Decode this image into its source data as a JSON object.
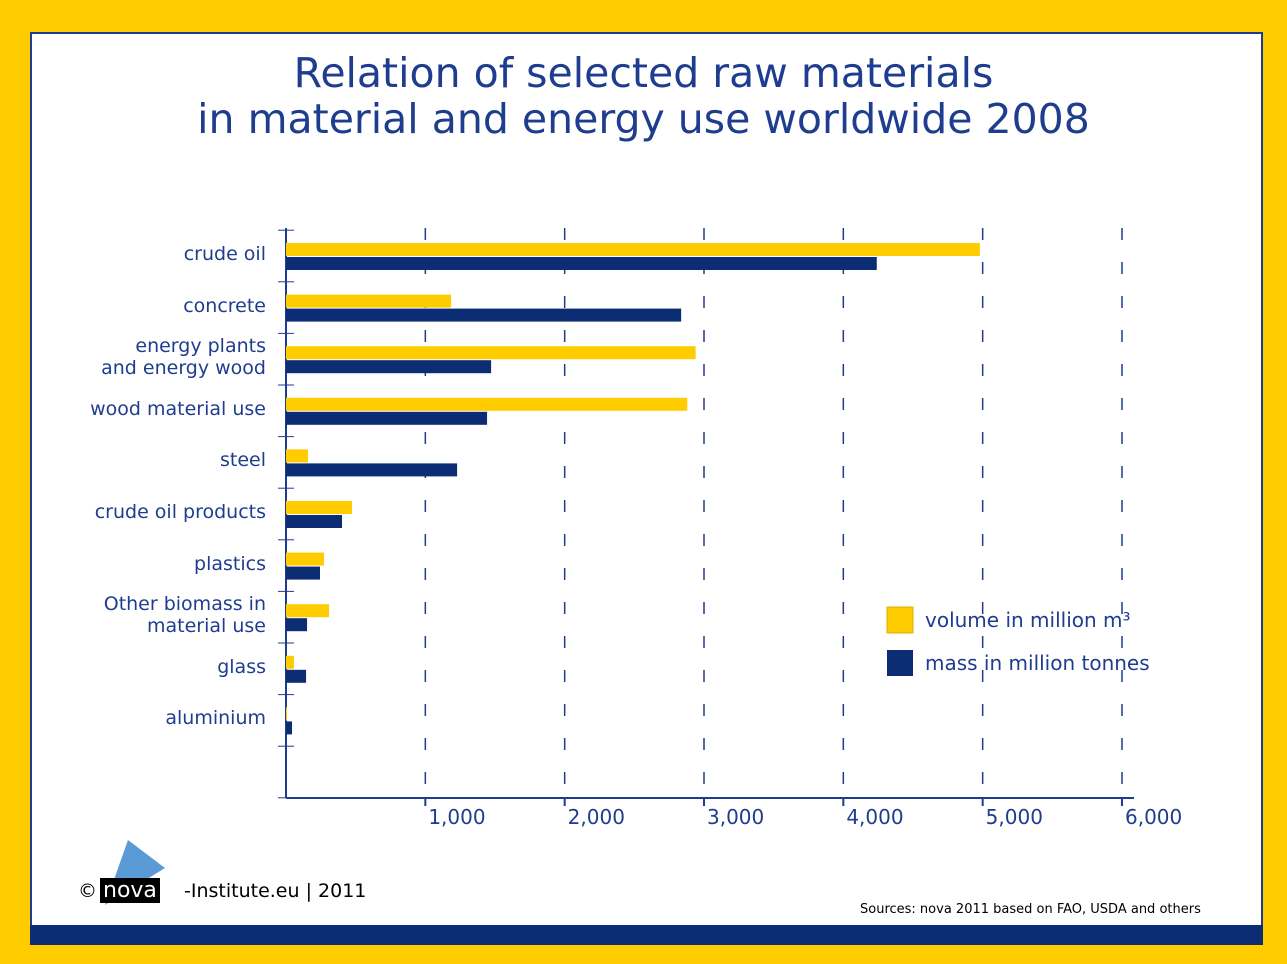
{
  "chart_data": {
    "type": "barh",
    "title": "Relation of selected raw materials\nin material and energy use worldwide 2008",
    "categories": [
      "crude oil",
      "concrete",
      "energy plants\nand energy wood",
      "wood material use",
      "steel",
      "crude oil products",
      "plastics",
      "Other biomass in\nmaterial use",
      "glass",
      "aluminium"
    ],
    "series": [
      {
        "name": "volume in million m³",
        "color": "#ffcc00",
        "values": [
          4980,
          1185,
          2940,
          2880,
          158,
          474,
          273,
          309,
          57,
          7
        ]
      },
      {
        "name": "mass in million tonnes",
        "color": "#0c2d73",
        "values": [
          4240,
          2836,
          1472,
          1443,
          1228,
          402,
          244,
          151,
          144,
          43
        ]
      }
    ],
    "xlim": [
      0,
      6000
    ],
    "xticks": [
      {
        "value": 1000,
        "label": "1,000"
      },
      {
        "value": 2000,
        "label": "2,000"
      },
      {
        "value": 3000,
        "label": "3,000"
      },
      {
        "value": 4000,
        "label": "4,000"
      },
      {
        "value": 5000,
        "label": "5,000"
      },
      {
        "value": 6000,
        "label": "6,000"
      }
    ],
    "grid": true
  },
  "footer": {
    "credit_prefix": "©",
    "logo": "nova",
    "credit": "-Institute.eu | 2011",
    "source": "Sources: nova 2011 based on FAO, USDA and others"
  }
}
